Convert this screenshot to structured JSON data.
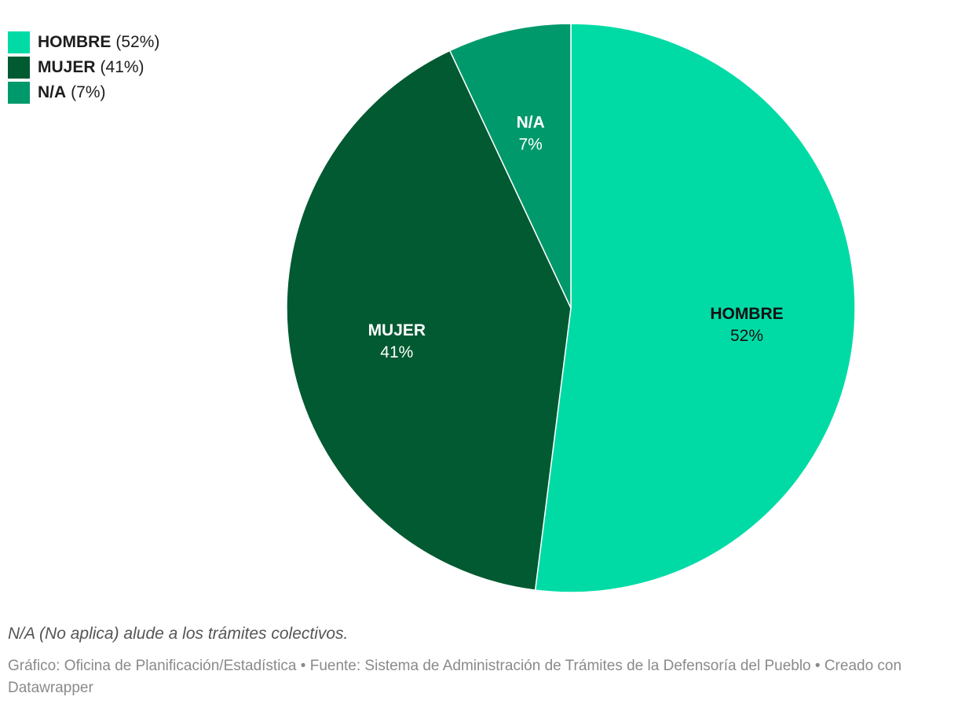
{
  "chart_data": {
    "type": "pie",
    "slices": [
      {
        "label": "HOMBRE",
        "value": 52,
        "display": "52%",
        "legend_pct": "(52%)",
        "color": "#00dba6",
        "text_color": "#111111"
      },
      {
        "label": "MUJER",
        "value": 41,
        "display": "41%",
        "legend_pct": "(41%)",
        "color": "#015a31",
        "text_color": "#ffffff"
      },
      {
        "label": "N/A",
        "value": 7,
        "display": "7%",
        "legend_pct": "(7%)",
        "color": "#00996b",
        "text_color": "#ffffff"
      }
    ],
    "legend_position": "top-left",
    "note": "N/A (No aplica) alude a los trámites colectivos.",
    "footer": "Gráfico: Oficina de Planificación/Estadística • Fuente: Sistema de Administración de Trámites de la Defensoría del Pueblo • Creado con Datawrapper"
  }
}
